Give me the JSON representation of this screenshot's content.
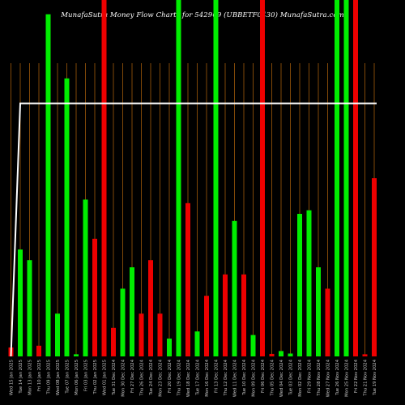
{
  "title": "MunafaSutra  Money Flow  Charts for 542909                    (UBBETF0430) MunafaSutra.com",
  "colors": {
    "up": "#00ee00",
    "down": "#ee0000",
    "line": "#ffffff",
    "grid": "#a05a0a",
    "label": "#cccccc"
  },
  "chart_data": {
    "type": "bar",
    "title": "MunafaSutra  Money Flow  Charts for 542909                    (UBBETF0430) MunafaSutra.com",
    "xlabel": "",
    "ylabel": "",
    "ylim": [
      0,
      100
    ],
    "grid": true,
    "bars": [
      {
        "label": "Wed 15 Jan 2025",
        "value": 2.5,
        "color": "down"
      },
      {
        "label": "Tue 14 Jan 2025",
        "value": 30,
        "color": "up"
      },
      {
        "label": "Mon 13 Jan 2025",
        "value": 27,
        "color": "up"
      },
      {
        "label": "Fri 10 Jan 2025",
        "value": 3,
        "color": "down"
      },
      {
        "label": "Thu 09 Jan 2025",
        "value": 96,
        "color": "up"
      },
      {
        "label": "Wed 08 Jan 2025",
        "value": 12,
        "color": "up"
      },
      {
        "label": "Tue 07 Jan 2025",
        "value": 78,
        "color": "up"
      },
      {
        "label": "Mon 06 Jan 2025",
        "value": 0.6,
        "color": "up"
      },
      {
        "label": "Fri 03 Jan 2025",
        "value": 44,
        "color": "up"
      },
      {
        "label": "Thu 02 Jan 2025",
        "value": 33,
        "color": "down"
      },
      {
        "label": "Wed 01 Jan 2025",
        "value": 100,
        "color": "down"
      },
      {
        "label": "Tue 31 Dec 2024",
        "value": 8,
        "color": "down"
      },
      {
        "label": "Mon 30 Dec 2024",
        "value": 19,
        "color": "up"
      },
      {
        "label": "Fri 27 Dec 2024",
        "value": 25,
        "color": "up"
      },
      {
        "label": "Thu 26 Dec 2024",
        "value": 12,
        "color": "down"
      },
      {
        "label": "Tue 24 Dec 2024",
        "value": 27,
        "color": "down"
      },
      {
        "label": "Mon 23 Dec 2024",
        "value": 12,
        "color": "down"
      },
      {
        "label": "Fri 20 Dec 2024",
        "value": 5,
        "color": "up"
      },
      {
        "label": "Thu 19 Dec 2024",
        "value": 100,
        "color": "up"
      },
      {
        "label": "Wed 18 Dec 2024",
        "value": 43,
        "color": "down"
      },
      {
        "label": "Tue 17 Dec 2024",
        "value": 7,
        "color": "up"
      },
      {
        "label": "Mon 16 Dec 2024",
        "value": 17,
        "color": "down"
      },
      {
        "label": "Fri 13 Dec 2024",
        "value": 100,
        "color": "up"
      },
      {
        "label": "Thu 12 Dec 2024",
        "value": 23,
        "color": "down"
      },
      {
        "label": "Wed 11 Dec 2024",
        "value": 38,
        "color": "up"
      },
      {
        "label": "Tue 10 Dec 2024",
        "value": 23,
        "color": "down"
      },
      {
        "label": "Mon 09 Dec 2024",
        "value": 6,
        "color": "up"
      },
      {
        "label": "Fri 06 Dec 2024",
        "value": 100,
        "color": "down"
      },
      {
        "label": "Thu 05 Dec 2024",
        "value": 0.7,
        "color": "down"
      },
      {
        "label": "Wed 04 Dec 2024",
        "value": 1.5,
        "color": "up"
      },
      {
        "label": "Tue 03 Dec 2024",
        "value": 0.8,
        "color": "up"
      },
      {
        "label": "Mon 02 Dec 2024",
        "value": 40,
        "color": "up"
      },
      {
        "label": "Fri 29 Nov 2024",
        "value": 41,
        "color": "up"
      },
      {
        "label": "Thu 28 Nov 2024",
        "value": 25,
        "color": "up"
      },
      {
        "label": "Wed 27 Nov 2024",
        "value": 19,
        "color": "down"
      },
      {
        "label": "Tue 26 Nov 2024",
        "value": 100,
        "color": "up"
      },
      {
        "label": "Mon 25 Nov 2024",
        "value": 100,
        "color": "up"
      },
      {
        "label": "Fri 22 Nov 2024",
        "value": 100,
        "color": "down"
      },
      {
        "label": "Thu 21 Nov 2024",
        "value": 0.6,
        "color": "down"
      },
      {
        "label": "Tue 19 Nov 2024",
        "value": 50,
        "color": "down"
      }
    ],
    "line": [
      0,
      71,
      71,
      71,
      71,
      71,
      71,
      71,
      71,
      71,
      71,
      71,
      71,
      71,
      71,
      71,
      71,
      71,
      71,
      71,
      71,
      71,
      71,
      71,
      71,
      71,
      71,
      71,
      71,
      71,
      71,
      71,
      71,
      71,
      71,
      71,
      71,
      71,
      71,
      71
    ]
  }
}
